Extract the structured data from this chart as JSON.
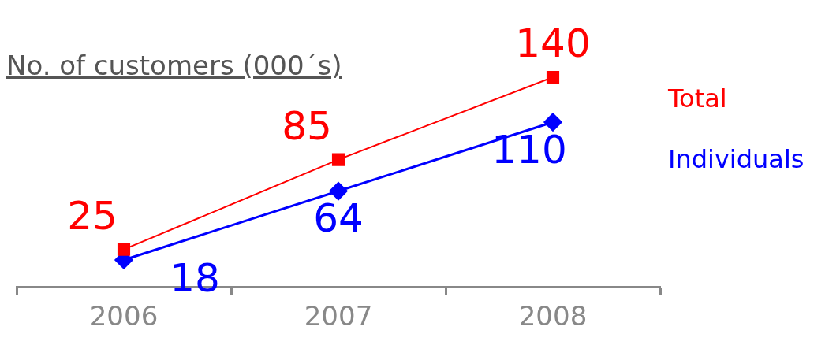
{
  "chart_data": {
    "type": "line",
    "title": "No. of customers (000´s)",
    "categories": [
      "2006",
      "2007",
      "2008"
    ],
    "series": [
      {
        "name": "Total",
        "color": "#ff0000",
        "values": [
          25,
          85,
          140
        ],
        "marker": "square"
      },
      {
        "name": "Individuals",
        "color": "#0000ff",
        "values": [
          18,
          64,
          110
        ],
        "marker": "diamond"
      }
    ],
    "data_labels": true,
    "legend": "right",
    "grid": false
  }
}
